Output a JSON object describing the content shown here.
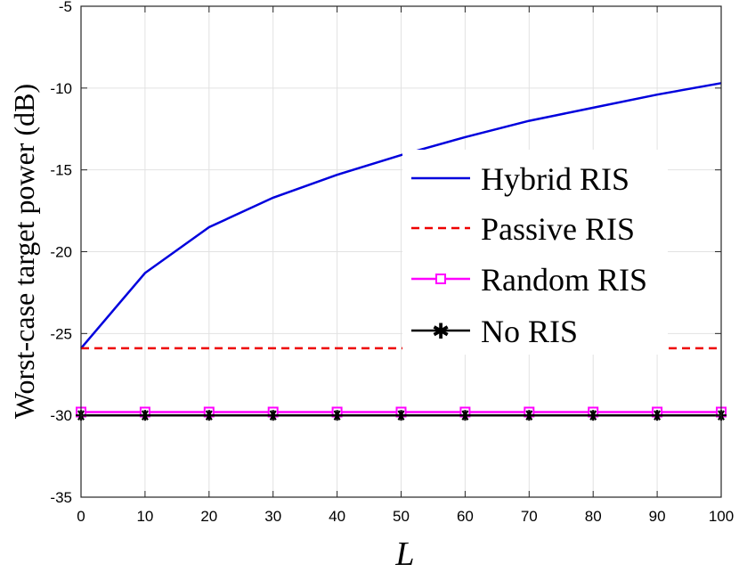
{
  "chart_data": {
    "type": "line",
    "title": "",
    "xlabel": "L",
    "ylabel": "Worst-case target power (dB)",
    "xlim": [
      0,
      100
    ],
    "ylim": [
      -35,
      -5
    ],
    "xticks": [
      0,
      10,
      20,
      30,
      40,
      50,
      60,
      70,
      80,
      90,
      100
    ],
    "yticks": [
      -35,
      -30,
      -25,
      -20,
      -15,
      -10,
      -5
    ],
    "xtick_labels": [
      "0",
      "10",
      "20",
      "30",
      "40",
      "50",
      "60",
      "70",
      "80",
      "90",
      "100"
    ],
    "ytick_labels": [
      "-35",
      "-30",
      "-25",
      "-20",
      "-15",
      "-10",
      "-5"
    ],
    "grid": true,
    "legend_position": "center-right",
    "x": [
      0,
      10,
      20,
      30,
      40,
      50,
      60,
      70,
      80,
      90,
      100
    ],
    "series": [
      {
        "name": "Hybrid RIS",
        "color": "#0000dd",
        "line_style": "solid",
        "marker": "none",
        "values": [
          -25.9,
          -21.3,
          -18.5,
          -16.7,
          -15.3,
          -14.1,
          -13.0,
          -12.0,
          -11.2,
          -10.4,
          -9.7
        ]
      },
      {
        "name": "Passive RIS",
        "color": "#ee0000",
        "line_style": "dashed",
        "marker": "none",
        "values": [
          -25.9,
          -25.9,
          -25.9,
          -25.9,
          -25.9,
          -25.9,
          -25.9,
          -25.9,
          -25.9,
          -25.9,
          -25.9
        ]
      },
      {
        "name": "Random RIS",
        "color": "#ff00ff",
        "line_style": "solid",
        "marker": "square",
        "values": [
          -29.8,
          -29.8,
          -29.8,
          -29.8,
          -29.8,
          -29.8,
          -29.8,
          -29.8,
          -29.8,
          -29.8,
          -29.8
        ]
      },
      {
        "name": "No RIS",
        "color": "#000000",
        "line_style": "solid",
        "marker": "asterisk",
        "values": [
          -30.0,
          -30.0,
          -30.0,
          -30.0,
          -30.0,
          -30.0,
          -30.0,
          -30.0,
          -30.0,
          -30.0,
          -30.0
        ]
      }
    ]
  }
}
